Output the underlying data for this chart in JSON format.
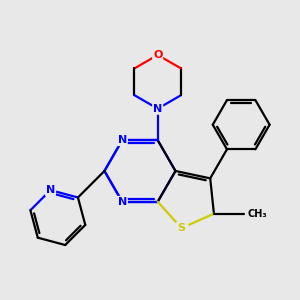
{
  "bg_color": "#e8e8e8",
  "atom_colors": {
    "N": "#0000ff",
    "O": "#ff0000",
    "S": "#cccc00",
    "C": "#000000"
  },
  "figsize": [
    3.0,
    3.0
  ],
  "dpi": 100,
  "lw": 1.6
}
